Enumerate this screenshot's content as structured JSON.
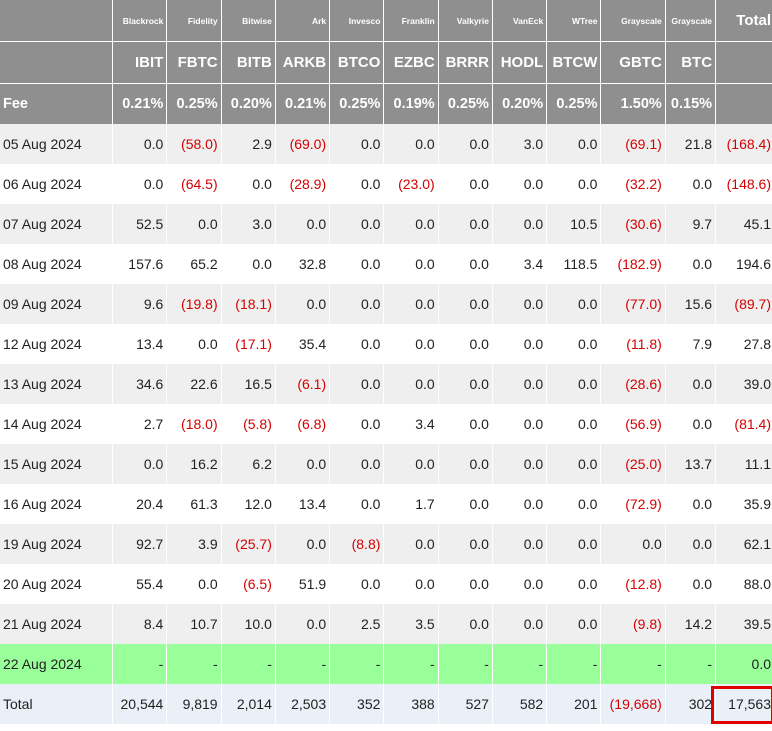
{
  "table": {
    "columns": [
      {
        "issuer": "Blackrock",
        "ticker": "IBIT",
        "fee": "0.21%"
      },
      {
        "issuer": "Fidelity",
        "ticker": "FBTC",
        "fee": "0.25%"
      },
      {
        "issuer": "Bitwise",
        "ticker": "BITB",
        "fee": "0.20%"
      },
      {
        "issuer": "Ark",
        "ticker": "ARKB",
        "fee": "0.21%"
      },
      {
        "issuer": "Invesco",
        "ticker": "BTCO",
        "fee": "0.25%"
      },
      {
        "issuer": "Franklin",
        "ticker": "EZBC",
        "fee": "0.19%"
      },
      {
        "issuer": "Valkyrie",
        "ticker": "BRRR",
        "fee": "0.25%"
      },
      {
        "issuer": "VanEck",
        "ticker": "HODL",
        "fee": "0.20%"
      },
      {
        "issuer": "WTree",
        "ticker": "BTCW",
        "fee": "0.25%"
      },
      {
        "issuer": "Grayscale",
        "ticker": "GBTC",
        "fee": "1.50%"
      },
      {
        "issuer": "Grayscale",
        "ticker": "BTC",
        "fee": "0.15%"
      }
    ],
    "total_header": "Total",
    "fee_label": "Fee",
    "rows": [
      {
        "date": "05 Aug 2024",
        "values": [
          "0.0",
          "(58.0)",
          "2.9",
          "(69.0)",
          "0.0",
          "0.0",
          "0.0",
          "3.0",
          "0.0",
          "(69.1)",
          "21.8"
        ],
        "total": "(168.4)"
      },
      {
        "date": "06 Aug 2024",
        "values": [
          "0.0",
          "(64.5)",
          "0.0",
          "(28.9)",
          "0.0",
          "(23.0)",
          "0.0",
          "0.0",
          "0.0",
          "(32.2)",
          "0.0"
        ],
        "total": "(148.6)"
      },
      {
        "date": "07 Aug 2024",
        "values": [
          "52.5",
          "0.0",
          "3.0",
          "0.0",
          "0.0",
          "0.0",
          "0.0",
          "0.0",
          "10.5",
          "(30.6)",
          "9.7"
        ],
        "total": "45.1"
      },
      {
        "date": "08 Aug 2024",
        "values": [
          "157.6",
          "65.2",
          "0.0",
          "32.8",
          "0.0",
          "0.0",
          "0.0",
          "3.4",
          "118.5",
          "(182.9)",
          "0.0"
        ],
        "total": "194.6"
      },
      {
        "date": "09 Aug 2024",
        "values": [
          "9.6",
          "(19.8)",
          "(18.1)",
          "0.0",
          "0.0",
          "0.0",
          "0.0",
          "0.0",
          "0.0",
          "(77.0)",
          "15.6"
        ],
        "total": "(89.7)"
      },
      {
        "date": "12 Aug 2024",
        "values": [
          "13.4",
          "0.0",
          "(17.1)",
          "35.4",
          "0.0",
          "0.0",
          "0.0",
          "0.0",
          "0.0",
          "(11.8)",
          "7.9"
        ],
        "total": "27.8"
      },
      {
        "date": "13 Aug 2024",
        "values": [
          "34.6",
          "22.6",
          "16.5",
          "(6.1)",
          "0.0",
          "0.0",
          "0.0",
          "0.0",
          "0.0",
          "(28.6)",
          "0.0"
        ],
        "total": "39.0"
      },
      {
        "date": "14 Aug 2024",
        "values": [
          "2.7",
          "(18.0)",
          "(5.8)",
          "(6.8)",
          "0.0",
          "3.4",
          "0.0",
          "0.0",
          "0.0",
          "(56.9)",
          "0.0"
        ],
        "total": "(81.4)"
      },
      {
        "date": "15 Aug 2024",
        "values": [
          "0.0",
          "16.2",
          "6.2",
          "0.0",
          "0.0",
          "0.0",
          "0.0",
          "0.0",
          "0.0",
          "(25.0)",
          "13.7"
        ],
        "total": "11.1"
      },
      {
        "date": "16 Aug 2024",
        "values": [
          "20.4",
          "61.3",
          "12.0",
          "13.4",
          "0.0",
          "1.7",
          "0.0",
          "0.0",
          "0.0",
          "(72.9)",
          "0.0"
        ],
        "total": "35.9"
      },
      {
        "date": "19 Aug 2024",
        "values": [
          "92.7",
          "3.9",
          "(25.7)",
          "0.0",
          "(8.8)",
          "0.0",
          "0.0",
          "0.0",
          "0.0",
          "0.0",
          "0.0"
        ],
        "total": "62.1"
      },
      {
        "date": "20 Aug 2024",
        "values": [
          "55.4",
          "0.0",
          "(6.5)",
          "51.9",
          "0.0",
          "0.0",
          "0.0",
          "0.0",
          "0.0",
          "(12.8)",
          "0.0"
        ],
        "total": "88.0"
      },
      {
        "date": "21 Aug 2024",
        "values": [
          "8.4",
          "10.7",
          "10.0",
          "0.0",
          "2.5",
          "3.5",
          "0.0",
          "0.0",
          "0.0",
          "(9.8)",
          "14.2"
        ],
        "total": "39.5"
      },
      {
        "date": "22 Aug 2024",
        "values": [
          "-",
          "-",
          "-",
          "-",
          "-",
          "-",
          "-",
          "-",
          "-",
          "-",
          "-"
        ],
        "total": "0.0",
        "highlight": true
      }
    ],
    "totals": {
      "label": "Total",
      "values": [
        "20,544",
        "9,819",
        "2,014",
        "2,503",
        "352",
        "388",
        "527",
        "582",
        "201",
        "(19,668)",
        "302"
      ],
      "total": "17,563"
    }
  },
  "colors": {
    "header_bg": "#8f8f8f",
    "negative": "#d40000",
    "highlight_row": "#99ff99",
    "total_row_bg": "#eaf0f8",
    "annotation_box": "#e00000"
  }
}
